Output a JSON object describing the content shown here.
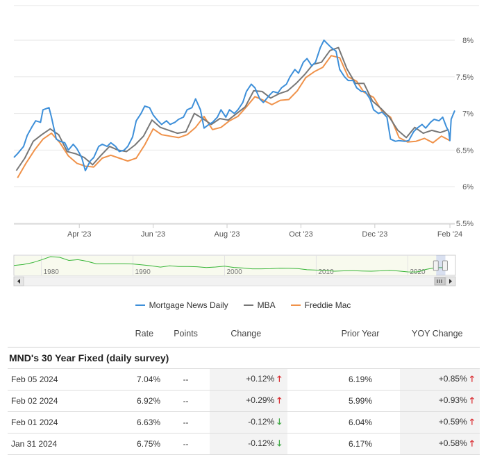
{
  "chart_data": {
    "type": "line",
    "x_tick_labels": [
      "Apr '23",
      "Jun '23",
      "Aug '23",
      "Oct '23",
      "Dec '23",
      "Feb '24"
    ],
    "x_ticks": [
      "2023-04-01",
      "2023-06-01",
      "2023-08-01",
      "2023-10-01",
      "2023-12-01",
      "2024-02-01"
    ],
    "x_range": [
      "2023-02-06",
      "2024-02-05"
    ],
    "y_tick_labels": [
      "5.5%",
      "6%",
      "6.5%",
      "7%",
      "7.5%",
      "8%"
    ],
    "y_ticks": [
      5.5,
      6.0,
      6.5,
      7.0,
      7.5,
      8.0
    ],
    "ylim": [
      5.5,
      8.0
    ],
    "grid": true,
    "legend_position": "bottom",
    "series": [
      {
        "name": "Mortgage News Daily",
        "color": "#3d8fd9",
        "points": [
          [
            "2023-02-06",
            6.4
          ],
          [
            "2023-02-09",
            6.45
          ],
          [
            "2023-02-14",
            6.55
          ],
          [
            "2023-02-17",
            6.7
          ],
          [
            "2023-02-21",
            6.82
          ],
          [
            "2023-02-24",
            6.9
          ],
          [
            "2023-02-28",
            6.88
          ],
          [
            "2023-03-02",
            7.05
          ],
          [
            "2023-03-07",
            7.08
          ],
          [
            "2023-03-09",
            6.95
          ],
          [
            "2023-03-13",
            6.65
          ],
          [
            "2023-03-16",
            6.62
          ],
          [
            "2023-03-20",
            6.6
          ],
          [
            "2023-03-23",
            6.5
          ],
          [
            "2023-03-27",
            6.58
          ],
          [
            "2023-03-30",
            6.52
          ],
          [
            "2023-04-03",
            6.4
          ],
          [
            "2023-04-06",
            6.22
          ],
          [
            "2023-04-10",
            6.35
          ],
          [
            "2023-04-13",
            6.4
          ],
          [
            "2023-04-17",
            6.55
          ],
          [
            "2023-04-20",
            6.58
          ],
          [
            "2023-04-24",
            6.55
          ],
          [
            "2023-04-27",
            6.6
          ],
          [
            "2023-05-01",
            6.55
          ],
          [
            "2023-05-04",
            6.48
          ],
          [
            "2023-05-08",
            6.5
          ],
          [
            "2023-05-11",
            6.55
          ],
          [
            "2023-05-15",
            6.68
          ],
          [
            "2023-05-18",
            6.9
          ],
          [
            "2023-05-22",
            7.0
          ],
          [
            "2023-05-25",
            7.1
          ],
          [
            "2023-05-29",
            7.08
          ],
          [
            "2023-06-01",
            6.98
          ],
          [
            "2023-06-05",
            6.9
          ],
          [
            "2023-06-08",
            6.85
          ],
          [
            "2023-06-12",
            6.9
          ],
          [
            "2023-06-15",
            6.85
          ],
          [
            "2023-06-19",
            6.88
          ],
          [
            "2023-06-22",
            6.92
          ],
          [
            "2023-06-26",
            6.95
          ],
          [
            "2023-06-29",
            7.05
          ],
          [
            "2023-07-03",
            7.08
          ],
          [
            "2023-07-06",
            7.2
          ],
          [
            "2023-07-10",
            7.05
          ],
          [
            "2023-07-13",
            6.8
          ],
          [
            "2023-07-17",
            6.85
          ],
          [
            "2023-07-20",
            6.88
          ],
          [
            "2023-07-24",
            6.95
          ],
          [
            "2023-07-27",
            7.05
          ],
          [
            "2023-07-31",
            6.95
          ],
          [
            "2023-08-03",
            7.05
          ],
          [
            "2023-08-07",
            7.0
          ],
          [
            "2023-08-10",
            7.05
          ],
          [
            "2023-08-14",
            7.15
          ],
          [
            "2023-08-17",
            7.3
          ],
          [
            "2023-08-21",
            7.4
          ],
          [
            "2023-08-24",
            7.35
          ],
          [
            "2023-08-28",
            7.2
          ],
          [
            "2023-08-31",
            7.15
          ],
          [
            "2023-09-05",
            7.25
          ],
          [
            "2023-09-08",
            7.3
          ],
          [
            "2023-09-12",
            7.28
          ],
          [
            "2023-09-15",
            7.35
          ],
          [
            "2023-09-19",
            7.4
          ],
          [
            "2023-09-22",
            7.5
          ],
          [
            "2023-09-26",
            7.6
          ],
          [
            "2023-09-29",
            7.55
          ],
          [
            "2023-10-03",
            7.7
          ],
          [
            "2023-10-06",
            7.75
          ],
          [
            "2023-10-10",
            7.65
          ],
          [
            "2023-10-13",
            7.7
          ],
          [
            "2023-10-17",
            7.9
          ],
          [
            "2023-10-20",
            8.0
          ],
          [
            "2023-10-23",
            7.95
          ],
          [
            "2023-10-26",
            7.9
          ],
          [
            "2023-10-30",
            7.85
          ],
          [
            "2023-11-02",
            7.6
          ],
          [
            "2023-11-06",
            7.5
          ],
          [
            "2023-11-09",
            7.45
          ],
          [
            "2023-11-13",
            7.45
          ],
          [
            "2023-11-16",
            7.35
          ],
          [
            "2023-11-20",
            7.3
          ],
          [
            "2023-11-23",
            7.3
          ],
          [
            "2023-11-27",
            7.2
          ],
          [
            "2023-11-30",
            7.05
          ],
          [
            "2023-12-04",
            7.0
          ],
          [
            "2023-12-07",
            7.02
          ],
          [
            "2023-12-11",
            6.95
          ],
          [
            "2023-12-14",
            6.65
          ],
          [
            "2023-12-18",
            6.62
          ],
          [
            "2023-12-21",
            6.63
          ],
          [
            "2023-12-26",
            6.62
          ],
          [
            "2023-12-29",
            6.63
          ],
          [
            "2024-01-02",
            6.75
          ],
          [
            "2024-01-05",
            6.8
          ],
          [
            "2024-01-09",
            6.85
          ],
          [
            "2024-01-12",
            6.8
          ],
          [
            "2024-01-16",
            6.88
          ],
          [
            "2024-01-19",
            6.92
          ],
          [
            "2024-01-23",
            6.9
          ],
          [
            "2024-01-26",
            6.95
          ],
          [
            "2024-01-29",
            6.82
          ],
          [
            "2024-01-31",
            6.75
          ],
          [
            "2024-02-01",
            6.63
          ],
          [
            "2024-02-02",
            6.92
          ],
          [
            "2024-02-05",
            7.04
          ]
        ]
      },
      {
        "name": "MBA",
        "color": "#777777",
        "points": [
          [
            "2023-02-08",
            6.22
          ],
          [
            "2023-02-15",
            6.39
          ],
          [
            "2023-02-22",
            6.62
          ],
          [
            "2023-03-01",
            6.71
          ],
          [
            "2023-03-08",
            6.79
          ],
          [
            "2023-03-15",
            6.71
          ],
          [
            "2023-03-22",
            6.48
          ],
          [
            "2023-03-29",
            6.45
          ],
          [
            "2023-04-05",
            6.4
          ],
          [
            "2023-04-12",
            6.3
          ],
          [
            "2023-04-19",
            6.43
          ],
          [
            "2023-04-26",
            6.55
          ],
          [
            "2023-05-03",
            6.5
          ],
          [
            "2023-05-10",
            6.48
          ],
          [
            "2023-05-17",
            6.57
          ],
          [
            "2023-05-24",
            6.69
          ],
          [
            "2023-05-31",
            6.91
          ],
          [
            "2023-06-07",
            6.81
          ],
          [
            "2023-06-14",
            6.77
          ],
          [
            "2023-06-21",
            6.73
          ],
          [
            "2023-06-28",
            6.75
          ],
          [
            "2023-07-05",
            7.0
          ],
          [
            "2023-07-12",
            6.93
          ],
          [
            "2023-07-19",
            6.85
          ],
          [
            "2023-07-26",
            6.93
          ],
          [
            "2023-08-02",
            6.91
          ],
          [
            "2023-08-09",
            7.0
          ],
          [
            "2023-08-16",
            7.09
          ],
          [
            "2023-08-23",
            7.31
          ],
          [
            "2023-08-30",
            7.3
          ],
          [
            "2023-09-06",
            7.21
          ],
          [
            "2023-09-13",
            7.27
          ],
          [
            "2023-09-20",
            7.31
          ],
          [
            "2023-09-27",
            7.41
          ],
          [
            "2023-10-04",
            7.53
          ],
          [
            "2023-10-11",
            7.67
          ],
          [
            "2023-10-18",
            7.7
          ],
          [
            "2023-10-25",
            7.86
          ],
          [
            "2023-11-01",
            7.9
          ],
          [
            "2023-11-08",
            7.61
          ],
          [
            "2023-11-15",
            7.41
          ],
          [
            "2023-11-22",
            7.41
          ],
          [
            "2023-11-29",
            7.17
          ],
          [
            "2023-12-06",
            7.07
          ],
          [
            "2023-12-13",
            6.95
          ],
          [
            "2023-12-20",
            6.77
          ],
          [
            "2023-12-27",
            6.67
          ],
          [
            "2024-01-03",
            6.81
          ],
          [
            "2024-01-10",
            6.73
          ],
          [
            "2024-01-17",
            6.77
          ],
          [
            "2024-01-24",
            6.74
          ],
          [
            "2024-01-31",
            6.78
          ]
        ]
      },
      {
        "name": "Freddie Mac",
        "color": "#f0924a",
        "points": [
          [
            "2023-02-09",
            6.12
          ],
          [
            "2023-02-16",
            6.32
          ],
          [
            "2023-02-23",
            6.5
          ],
          [
            "2023-03-02",
            6.65
          ],
          [
            "2023-03-09",
            6.73
          ],
          [
            "2023-03-16",
            6.6
          ],
          [
            "2023-03-23",
            6.42
          ],
          [
            "2023-03-30",
            6.32
          ],
          [
            "2023-04-06",
            6.28
          ],
          [
            "2023-04-13",
            6.27
          ],
          [
            "2023-04-20",
            6.39
          ],
          [
            "2023-04-27",
            6.43
          ],
          [
            "2023-05-04",
            6.39
          ],
          [
            "2023-05-11",
            6.35
          ],
          [
            "2023-05-18",
            6.39
          ],
          [
            "2023-05-25",
            6.57
          ],
          [
            "2023-06-01",
            6.79
          ],
          [
            "2023-06-08",
            6.71
          ],
          [
            "2023-06-15",
            6.69
          ],
          [
            "2023-06-22",
            6.67
          ],
          [
            "2023-06-29",
            6.71
          ],
          [
            "2023-07-06",
            6.81
          ],
          [
            "2023-07-13",
            6.96
          ],
          [
            "2023-07-20",
            6.78
          ],
          [
            "2023-07-27",
            6.81
          ],
          [
            "2023-08-03",
            6.9
          ],
          [
            "2023-08-10",
            6.96
          ],
          [
            "2023-08-17",
            7.09
          ],
          [
            "2023-08-24",
            7.23
          ],
          [
            "2023-08-31",
            7.18
          ],
          [
            "2023-09-07",
            7.12
          ],
          [
            "2023-09-14",
            7.18
          ],
          [
            "2023-09-21",
            7.19
          ],
          [
            "2023-09-28",
            7.31
          ],
          [
            "2023-10-05",
            7.49
          ],
          [
            "2023-10-12",
            7.57
          ],
          [
            "2023-10-19",
            7.63
          ],
          [
            "2023-10-26",
            7.79
          ],
          [
            "2023-11-02",
            7.76
          ],
          [
            "2023-11-09",
            7.5
          ],
          [
            "2023-11-16",
            7.44
          ],
          [
            "2023-11-22",
            7.29
          ],
          [
            "2023-11-30",
            7.22
          ],
          [
            "2023-12-07",
            7.03
          ],
          [
            "2023-12-14",
            6.95
          ],
          [
            "2023-12-21",
            6.67
          ],
          [
            "2023-12-28",
            6.61
          ],
          [
            "2024-01-04",
            6.62
          ],
          [
            "2024-01-11",
            6.66
          ],
          [
            "2024-01-18",
            6.6
          ],
          [
            "2024-01-25",
            6.69
          ],
          [
            "2024-02-01",
            6.63
          ]
        ]
      }
    ],
    "navigator": {
      "tick_labels": [
        "1980",
        "1990",
        "2000",
        "2010",
        "2020"
      ],
      "ticks": [
        1980,
        1990,
        2000,
        2010,
        2020
      ],
      "x_range": [
        1977,
        2025.2
      ],
      "selected_range": [
        2023.1,
        2024.1
      ],
      "series_color": "#35b535",
      "points": [
        [
          1977,
          8.8
        ],
        [
          1978,
          9.6
        ],
        [
          1979,
          11.2
        ],
        [
          1980,
          13.7
        ],
        [
          1981,
          16.6
        ],
        [
          1982,
          16.0
        ],
        [
          1983,
          13.2
        ],
        [
          1984,
          13.9
        ],
        [
          1985,
          12.4
        ],
        [
          1986,
          10.2
        ],
        [
          1987,
          10.2
        ],
        [
          1988,
          10.3
        ],
        [
          1989,
          10.3
        ],
        [
          1990,
          10.1
        ],
        [
          1991,
          9.3
        ],
        [
          1992,
          8.4
        ],
        [
          1993,
          7.3
        ],
        [
          1994,
          8.4
        ],
        [
          1995,
          7.9
        ],
        [
          1996,
          7.8
        ],
        [
          1997,
          7.6
        ],
        [
          1998,
          6.9
        ],
        [
          1999,
          7.4
        ],
        [
          2000,
          8.1
        ],
        [
          2001,
          7.0
        ],
        [
          2002,
          6.5
        ],
        [
          2003,
          5.8
        ],
        [
          2004,
          5.8
        ],
        [
          2005,
          5.9
        ],
        [
          2006,
          6.4
        ],
        [
          2007,
          6.3
        ],
        [
          2008,
          6.0
        ],
        [
          2009,
          5.0
        ],
        [
          2010,
          4.7
        ],
        [
          2011,
          4.5
        ],
        [
          2012,
          3.7
        ],
        [
          2013,
          4.0
        ],
        [
          2014,
          4.2
        ],
        [
          2015,
          3.9
        ],
        [
          2016,
          3.7
        ],
        [
          2017,
          4.0
        ],
        [
          2018,
          4.5
        ],
        [
          2019,
          3.9
        ],
        [
          2020,
          3.1
        ],
        [
          2021,
          3.0
        ],
        [
          2022,
          5.3
        ],
        [
          2023,
          6.8
        ],
        [
          2024,
          6.9
        ]
      ]
    }
  },
  "legend": [
    {
      "label": "Mortgage News Daily",
      "color": "#3d8fd9"
    },
    {
      "label": "MBA",
      "color": "#777777"
    },
    {
      "label": "Freddie Mac",
      "color": "#f0924a"
    }
  ],
  "table": {
    "headers": {
      "rate": "Rate",
      "points": "Points",
      "change": "Change",
      "prior_year": "Prior Year",
      "yoy_change": "YOY Change"
    },
    "section_title": "MND's 30 Year Fixed (daily survey)",
    "rows": [
      {
        "date": "Feb 05 2024",
        "rate": "7.04%",
        "points": "--",
        "change": "+0.12%",
        "change_dir": "up",
        "prior_year": "6.19%",
        "yoy": "+0.85%",
        "yoy_dir": "up"
      },
      {
        "date": "Feb 02 2024",
        "rate": "6.92%",
        "points": "--",
        "change": "+0.29%",
        "change_dir": "up",
        "prior_year": "5.99%",
        "yoy": "+0.93%",
        "yoy_dir": "up"
      },
      {
        "date": "Feb 01 2024",
        "rate": "6.63%",
        "points": "--",
        "change": "-0.12%",
        "change_dir": "down",
        "prior_year": "6.04%",
        "yoy": "+0.59%",
        "yoy_dir": "up"
      },
      {
        "date": "Jan 31 2024",
        "rate": "6.75%",
        "points": "--",
        "change": "-0.12%",
        "change_dir": "down",
        "prior_year": "6.17%",
        "yoy": "+0.58%",
        "yoy_dir": "up"
      }
    ]
  }
}
